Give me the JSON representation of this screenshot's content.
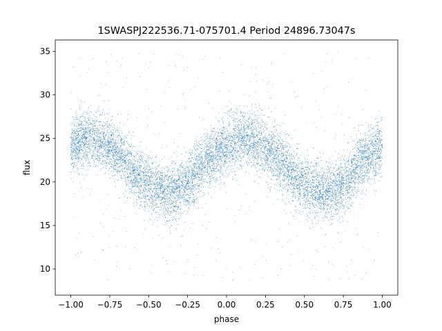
{
  "chart_data": {
    "type": "scatter",
    "title": "1SWASPJ222536.71-075701.4 Period 24896.73047s",
    "xlabel": "phase",
    "ylabel": "flux",
    "xlim": [
      -1.1,
      1.1
    ],
    "ylim": [
      7.0,
      36.3
    ],
    "xticks": [
      -1.0,
      -0.75,
      -0.5,
      -0.25,
      0.0,
      0.25,
      0.5,
      0.75,
      1.0
    ],
    "xtick_labels": [
      "−1.00",
      "−0.75",
      "−0.50",
      "−0.25",
      "0.00",
      "0.25",
      "0.50",
      "0.75",
      "1.00"
    ],
    "yticks": [
      10,
      15,
      20,
      25,
      30,
      35
    ],
    "ytick_labels": [
      "10",
      "15",
      "20",
      "25",
      "30",
      "35"
    ],
    "grid": false,
    "legend": "none",
    "series": [
      {
        "color": "#1f77b4",
        "description_of_points": "dense phase-folded light curve, approximately sinusoidal with two cycles over phase -1 to 1",
        "points": [
          [
            -1.0,
            24.0
          ],
          [
            -0.95,
            24.5
          ],
          [
            -0.9,
            25.0
          ],
          [
            -0.85,
            24.8
          ],
          [
            -0.8,
            24.5
          ],
          [
            -0.75,
            24.0
          ],
          [
            -0.7,
            23.3
          ],
          [
            -0.65,
            22.5
          ],
          [
            -0.6,
            21.3
          ],
          [
            -0.55,
            20.3
          ],
          [
            -0.5,
            19.7
          ],
          [
            -0.45,
            19.2
          ],
          [
            -0.4,
            18.9
          ],
          [
            -0.35,
            18.8
          ],
          [
            -0.3,
            19.0
          ],
          [
            -0.25,
            19.8
          ],
          [
            -0.2,
            20.8
          ],
          [
            -0.15,
            21.9
          ],
          [
            -0.1,
            22.8
          ],
          [
            -0.05,
            23.5
          ],
          [
            0.0,
            24.0
          ],
          [
            0.05,
            24.5
          ],
          [
            0.1,
            25.0
          ],
          [
            0.15,
            24.8
          ],
          [
            0.2,
            24.5
          ],
          [
            0.25,
            24.0
          ],
          [
            0.3,
            23.3
          ],
          [
            0.35,
            22.5
          ],
          [
            0.4,
            21.3
          ],
          [
            0.45,
            20.3
          ],
          [
            0.5,
            19.7
          ],
          [
            0.55,
            19.2
          ],
          [
            0.6,
            18.9
          ],
          [
            0.65,
            18.8
          ],
          [
            0.7,
            19.0
          ],
          [
            0.75,
            19.8
          ],
          [
            0.8,
            20.8
          ],
          [
            0.85,
            21.9
          ],
          [
            0.9,
            22.8
          ],
          [
            0.95,
            23.5
          ],
          [
            1.0,
            24.0
          ]
        ],
        "scatter_width": 1.6,
        "outlier_range": [
          8.5,
          35.0
        ]
      }
    ]
  }
}
